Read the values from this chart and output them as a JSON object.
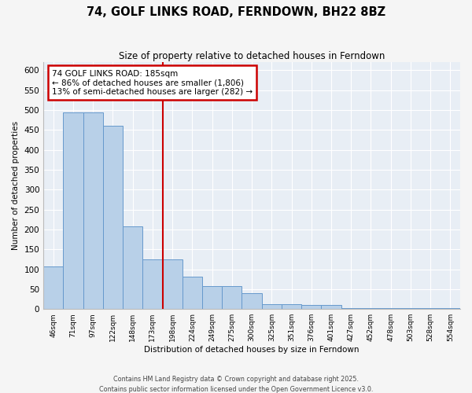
{
  "title": "74, GOLF LINKS ROAD, FERNDOWN, BH22 8BZ",
  "subtitle": "Size of property relative to detached houses in Ferndown",
  "xlabel": "Distribution of detached houses by size in Ferndown",
  "ylabel": "Number of detached properties",
  "categories": [
    "46sqm",
    "71sqm",
    "97sqm",
    "122sqm",
    "148sqm",
    "173sqm",
    "198sqm",
    "224sqm",
    "249sqm",
    "275sqm",
    "300sqm",
    "325sqm",
    "351sqm",
    "376sqm",
    "401sqm",
    "427sqm",
    "452sqm",
    "478sqm",
    "503sqm",
    "528sqm",
    "554sqm"
  ],
  "values": [
    107,
    493,
    493,
    460,
    207,
    124,
    124,
    82,
    57,
    57,
    39,
    13,
    13,
    10,
    10,
    3,
    3,
    3,
    3,
    3,
    3
  ],
  "bar_color": "#b8d0e8",
  "bar_edgecolor": "#6699cc",
  "vline_index": 6,
  "annotation_title": "74 GOLF LINKS ROAD: 185sqm",
  "annotation_line1": "← 86% of detached houses are smaller (1,806)",
  "annotation_line2": "13% of semi-detached houses are larger (282) →",
  "annotation_box_color": "#cc0000",
  "vline_color": "#cc0000",
  "plot_bg_color": "#e8eef5",
  "grid_color": "#ffffff",
  "fig_bg_color": "#f5f5f5",
  "footer_line1": "Contains HM Land Registry data © Crown copyright and database right 2025.",
  "footer_line2": "Contains public sector information licensed under the Open Government Licence v3.0.",
  "ylim": [
    0,
    620
  ],
  "ytick_step": 50
}
